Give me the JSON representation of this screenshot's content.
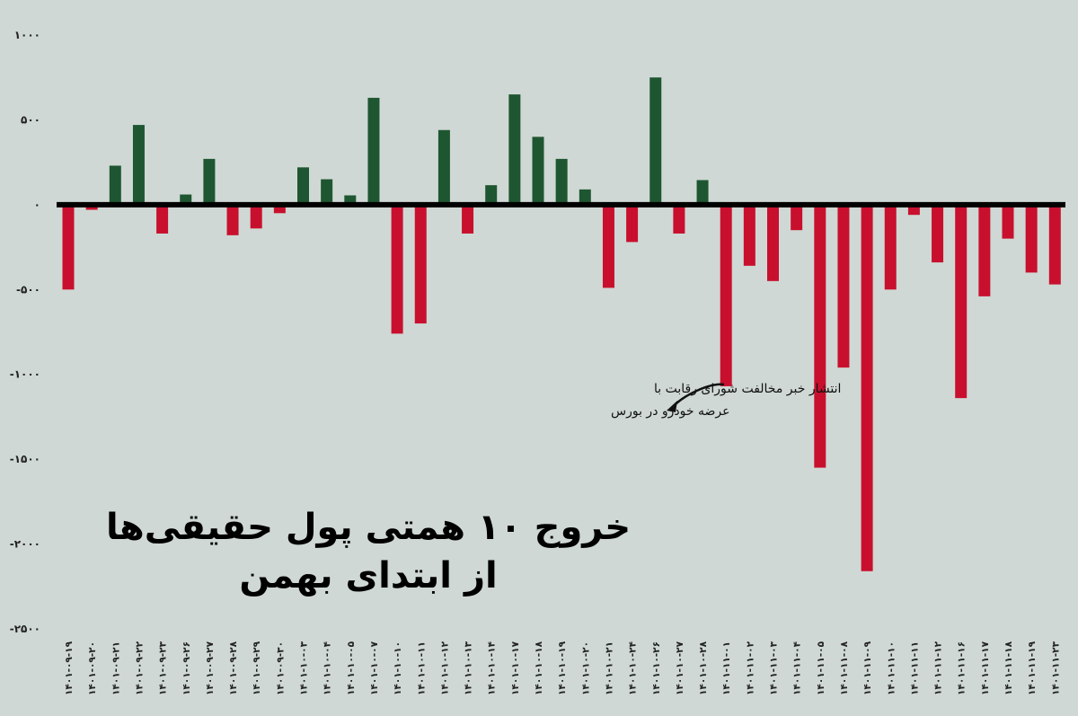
{
  "chart_data": {
    "type": "bar",
    "title_line1": "خروج ۱۰ همتی پول حقیقی‌ها",
    "title_line2": "از ابتدای بهمن",
    "annotation": {
      "line1": "انتشار خبر مخالفت شورای رقابت با",
      "line2": "عرضه خودرو در بورس",
      "target_category": "۱۴۰۱-۱۱-۰۱"
    },
    "ylim": [
      -2500,
      1000
    ],
    "yticks": [
      {
        "value": 1000,
        "label": "۱۰۰۰"
      },
      {
        "value": 500,
        "label": "۵۰۰"
      },
      {
        "value": 0,
        "label": "۰"
      },
      {
        "value": -500,
        "label": "-۵۰۰"
      },
      {
        "value": -1000,
        "label": "-۱۰۰۰"
      },
      {
        "value": -1500,
        "label": "-۱۵۰۰"
      },
      {
        "value": -2000,
        "label": "-۲۰۰۰"
      },
      {
        "value": -2500,
        "label": "-۲۵۰۰"
      }
    ],
    "colors": {
      "positive": "#1e5631",
      "negative": "#c8102e",
      "zero_line": "#000000"
    },
    "categories": [
      "۱۴۰۱-۰۹-۱۹",
      "۱۴۰۱-۰۹-۲۰",
      "۱۴۰۱-۰۹-۲۱",
      "۱۴۰۱-۰۹-۲۲",
      "۱۴۰۱-۰۹-۲۳",
      "۱۴۰۱-۰۹-۲۶",
      "۱۴۰۱-۰۹-۲۷",
      "۱۴۰۱-۰۹-۲۸",
      "۱۴۰۱-۰۹-۲۹",
      "۱۴۰۱-۰۹-۳۰",
      "۱۴۰۱-۱۰-۰۳",
      "۱۴۰۱-۱۰-۰۴",
      "۱۴۰۱-۱۰-۰۵",
      "۱۴۰۱-۱۰-۰۷",
      "۱۴۰۱-۱۰-۱۰",
      "۱۴۰۱-۱۰-۱۱",
      "۱۴۰۱-۱۰-۱۲",
      "۱۴۰۱-۱۰-۱۳",
      "۱۴۰۱-۱۰-۱۴",
      "۱۴۰۱-۱۰-۱۷",
      "۱۴۰۱-۱۰-۱۸",
      "۱۴۰۱-۱۰-۱۹",
      "۱۴۰۱-۱۰-۲۰",
      "۱۴۰۱-۱۰-۲۱",
      "۱۴۰۱-۱۰-۲۴",
      "۱۴۰۱-۱۰-۲۶",
      "۱۴۰۱-۱۰-۲۷",
      "۱۴۰۱-۱۰-۲۸",
      "۱۴۰۱-۱۱-۰۱",
      "۱۴۰۱-۱۱-۰۲",
      "۱۴۰۱-۱۱-۰۳",
      "۱۴۰۱-۱۱-۰۴",
      "۱۴۰۱-۱۱-۰۵",
      "۱۴۰۱-۱۱-۰۸",
      "۱۴۰۱-۱۱-۰۹",
      "۱۴۰۱-۱۱-۱۰",
      "۱۴۰۱-۱۱-۱۱",
      "۱۴۰۱-۱۱-۱۲",
      "۱۴۰۱-۱۱-۱۶",
      "۱۴۰۱-۱۱-۱۷",
      "۱۴۰۱-۱۱-۱۸",
      "۱۴۰۱-۱۱-۱۹",
      "۱۴۰۱-۱۱-۲۳"
    ],
    "values": [
      -500,
      -30,
      230,
      470,
      -170,
      60,
      270,
      -180,
      -140,
      -50,
      220,
      150,
      55,
      630,
      -760,
      -700,
      440,
      -170,
      115,
      650,
      400,
      270,
      90,
      -490,
      -220,
      750,
      -170,
      145,
      -1070,
      -360,
      -450,
      -150,
      -1550,
      -960,
      -2160,
      -500,
      -60,
      -340,
      -1140,
      -540,
      -200,
      -400,
      -470
    ]
  }
}
